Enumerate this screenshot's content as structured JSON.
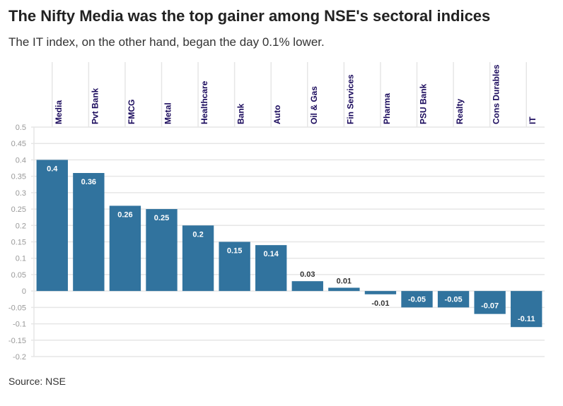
{
  "title": "The Nifty Media was the top gainer among NSE's sectoral indices",
  "subtitle": "The IT index, on the other hand, began the day 0.1% lower.",
  "source": "Source: NSE",
  "colors": {
    "bar": "#31739e",
    "label": "#1a0a5c"
  },
  "chart_data": {
    "type": "bar",
    "title": "The Nifty Media was the top gainer among NSE's sectoral indices",
    "xlabel": "",
    "ylabel": "",
    "categories": [
      "Media",
      "Pvt Bank",
      "FMCG",
      "Metal",
      "Healthcare",
      "Bank",
      "Auto",
      "Oil & Gas",
      "Fin Services",
      "Pharma",
      "PSU Bank",
      "Realty",
      "Cons Durables",
      "IT"
    ],
    "values": [
      0.4,
      0.36,
      0.26,
      0.25,
      0.2,
      0.15,
      0.14,
      0.03,
      0.01,
      -0.01,
      -0.05,
      -0.05,
      -0.07,
      -0.11
    ],
    "value_labels": [
      "0.4",
      "0.36",
      "0.26",
      "0.25",
      "0.2",
      "0.15",
      "0.14",
      "0.03",
      "0.01",
      "-0.01",
      "-0.05",
      "-0.05",
      "-0.07",
      "-0.11"
    ],
    "ylim": [
      -0.2,
      0.5
    ],
    "yticks": [
      "0.5",
      "0.45",
      "0.4",
      "0.35",
      "0.3",
      "0.25",
      "0.2",
      "0.15",
      "0.1",
      "0.05",
      "0",
      "-0.05",
      "-0.1",
      "-0.15",
      "-0.2"
    ],
    "grid": true
  }
}
